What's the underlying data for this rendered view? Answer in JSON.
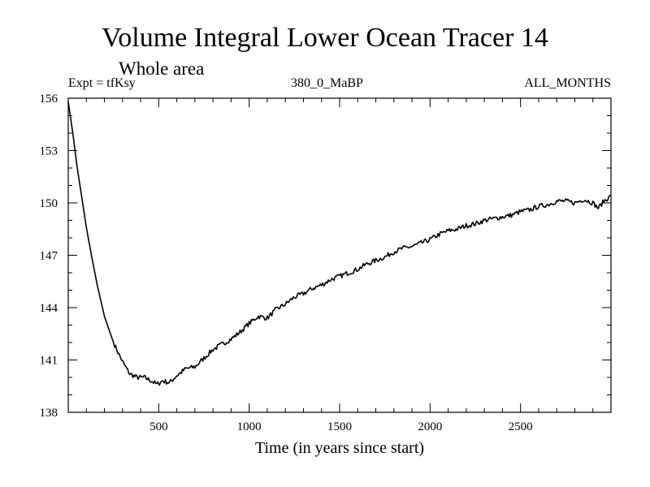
{
  "chart_data": {
    "type": "line",
    "title": "Volume Integral Lower Ocean Tracer 14",
    "subtitle": "Whole area",
    "header_left": "Expt = tfKsy",
    "header_center": "380_0_MaBP",
    "header_right": "ALL_MONTHS",
    "xlabel": "Time (in years since start)",
    "ylabel": "",
    "xlim": [
      0,
      3000
    ],
    "ylim": [
      138,
      156
    ],
    "xticks": [
      500,
      1000,
      1500,
      2000,
      2500
    ],
    "yticks": [
      138,
      141,
      144,
      147,
      150,
      153,
      156
    ],
    "x_tick_labels": [
      "500",
      "1000",
      "1500",
      "2000",
      "2500"
    ],
    "y_tick_labels": [
      "138",
      "141",
      "144",
      "147",
      "150",
      "153",
      "156"
    ],
    "series": [
      {
        "name": "Tracer 14",
        "x": [
          0,
          25,
          50,
          75,
          100,
          130,
          160,
          200,
          250,
          300,
          340,
          380,
          420,
          460,
          490,
          520,
          560,
          600,
          650,
          700,
          750,
          800,
          850,
          900,
          950,
          1000,
          1050,
          1100,
          1150,
          1200,
          1250,
          1300,
          1350,
          1400,
          1450,
          1500,
          1550,
          1600,
          1650,
          1700,
          1750,
          1800,
          1850,
          1900,
          1950,
          2000,
          2050,
          2100,
          2150,
          2200,
          2250,
          2300,
          2350,
          2400,
          2450,
          2500,
          2550,
          2600,
          2650,
          2700,
          2750,
          2800,
          2850,
          2900,
          2930,
          2960,
          3000
        ],
        "y": [
          155.8,
          154.0,
          152.0,
          150.3,
          148.6,
          146.9,
          145.3,
          143.5,
          142.0,
          140.9,
          140.2,
          140.0,
          140.0,
          139.8,
          139.6,
          139.8,
          139.7,
          140.1,
          140.5,
          140.6,
          141.1,
          141.6,
          141.9,
          142.2,
          142.6,
          143.1,
          143.5,
          143.4,
          143.9,
          144.2,
          144.6,
          144.8,
          145.1,
          145.3,
          145.6,
          145.8,
          146.0,
          146.2,
          146.5,
          146.7,
          146.9,
          147.2,
          147.4,
          147.5,
          147.7,
          147.9,
          148.2,
          148.4,
          148.5,
          148.7,
          148.8,
          149.0,
          149.1,
          149.2,
          149.3,
          149.5,
          149.6,
          149.8,
          149.9,
          150.1,
          150.1,
          150.0,
          150.2,
          150.0,
          149.7,
          150.1,
          150.4
        ]
      }
    ]
  }
}
